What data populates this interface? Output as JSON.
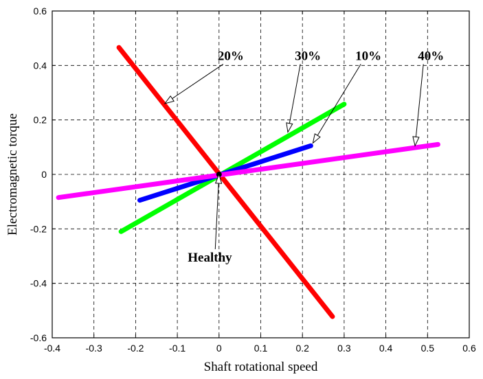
{
  "chart_data": {
    "type": "line",
    "xlabel": "Shaft rotational speed",
    "ylabel": "Electromagnetic torque",
    "xlim": [
      -0.4,
      0.6
    ],
    "ylim": [
      -0.6,
      0.6
    ],
    "xticks": [
      -0.4,
      -0.3,
      -0.2,
      -0.1,
      0,
      0.1,
      0.2,
      0.3,
      0.4,
      0.5,
      0.6
    ],
    "yticks": [
      -0.6,
      -0.4,
      -0.2,
      0,
      0.2,
      0.4,
      0.6
    ],
    "xtick_labels": [
      "-0.4",
      "-0.3",
      "-0.2",
      "-0.1",
      "0",
      "0.1",
      "0.2",
      "0.3",
      "0.4",
      "0.5",
      "0.6"
    ],
    "ytick_labels": [
      "-0.6",
      "-0.4",
      "-0.2",
      "0",
      "0.2",
      "0.4",
      "0.6"
    ],
    "grid": true,
    "series": [
      {
        "color": "#ff0000",
        "x": [
          -0.24,
          0.272
        ],
        "y": [
          0.466,
          -0.522
        ]
      },
      {
        "color": "#00ff00",
        "x": [
          -0.235,
          0.3
        ],
        "y": [
          -0.21,
          0.258
        ]
      },
      {
        "color": "#0000ff",
        "x": [
          -0.19,
          0.22
        ],
        "y": [
          -0.095,
          0.105
        ]
      },
      {
        "color": "#ff00ff",
        "x": [
          -0.385,
          0.525
        ],
        "y": [
          -0.085,
          0.11
        ]
      },
      {
        "color": "#000000",
        "x": [
          0,
          0
        ],
        "y": [
          0,
          0
        ]
      }
    ],
    "annotations": [
      {
        "text": "20%",
        "label_at": [
          0.01,
          0.42
        ],
        "arrow_to": [
          -0.13,
          0.26
        ]
      },
      {
        "text": "30%",
        "label_at": [
          0.195,
          0.42
        ],
        "arrow_to": [
          0.165,
          0.155
        ]
      },
      {
        "text": "10%",
        "label_at": [
          0.34,
          0.42
        ],
        "arrow_to": [
          0.225,
          0.115
        ]
      },
      {
        "text": "40%",
        "label_at": [
          0.49,
          0.42
        ],
        "arrow_to": [
          0.47,
          0.105
        ]
      },
      {
        "text": "Healthy",
        "label_at": [
          -0.075,
          -0.32
        ],
        "arrow_to": [
          0,
          0
        ]
      }
    ]
  }
}
